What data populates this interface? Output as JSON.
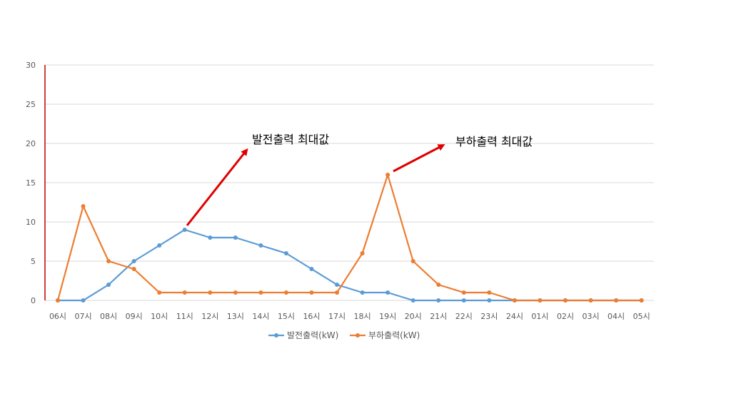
{
  "colors": {
    "series_1": "#5B9BD5",
    "series_2": "#ED7D31",
    "gridline": "#D9D9D9",
    "y_axis_line": "#C00000",
    "arrow": "#E00000",
    "tick_text": "#595959"
  },
  "chart_data": {
    "type": "line",
    "title": "",
    "xlabel": "",
    "ylabel": "",
    "categories": [
      "06시",
      "07시",
      "08시",
      "09시",
      "10시",
      "11시",
      "12시",
      "13시",
      "14시",
      "15시",
      "16시",
      "17시",
      "18시",
      "19시",
      "20시",
      "21시",
      "22시",
      "23시",
      "24시",
      "01시",
      "02시",
      "03시",
      "04시",
      "05시"
    ],
    "ylim": [
      0,
      30
    ],
    "yticks": [
      0,
      5,
      10,
      15,
      20,
      25,
      30
    ],
    "grid": true,
    "legend_position": "bottom",
    "series": [
      {
        "name": "발전출력(kW)",
        "color": "#5B9BD5",
        "values": [
          0,
          0,
          2,
          5,
          7,
          9,
          8,
          8,
          7,
          6,
          4,
          2,
          1,
          1,
          0,
          0,
          0,
          0,
          0,
          0,
          0,
          0,
          0,
          0
        ]
      },
      {
        "name": "부하출력(kW)",
        "color": "#ED7D31",
        "values": [
          0,
          12,
          5,
          4,
          1,
          1,
          1,
          1,
          1,
          1,
          1,
          1,
          6,
          16,
          5,
          2,
          1,
          1,
          0,
          0,
          0,
          0,
          0,
          0
        ]
      }
    ],
    "annotations": [
      {
        "text": "발전출력 최대값",
        "target_category": "11시",
        "target_value": 9
      },
      {
        "text": "부하출력 최대값",
        "target_category": "19시",
        "target_value": 16
      }
    ]
  }
}
